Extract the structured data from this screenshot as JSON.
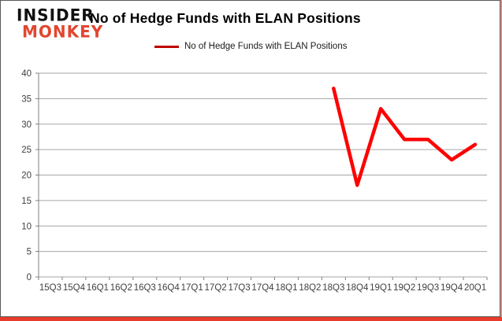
{
  "logo": {
    "line1": "INSIDER",
    "line2": "MONKEY"
  },
  "header": {
    "title": "No of Hedge Funds with ELAN Positions"
  },
  "legend": {
    "label": "No of Hedge Funds with ELAN Positions"
  },
  "colors": {
    "series_line": "#ff0000",
    "legend_swatch": "#c00000",
    "logo_monkey": "#e2462f",
    "logo_insider": "#111111",
    "gridline": "#a6a6a6",
    "axis": "#808080",
    "axis_text": "#404040",
    "bottom_border": "#e93b2b",
    "right_border": "#d58f85"
  },
  "chart_data": {
    "type": "line",
    "title": "No of Hedge Funds with ELAN Positions",
    "categories": [
      "15Q3",
      "15Q4",
      "16Q1",
      "16Q2",
      "16Q3",
      "16Q4",
      "17Q1",
      "17Q2",
      "17Q3",
      "17Q4",
      "18Q1",
      "18Q2",
      "18Q3",
      "18Q4",
      "19Q1",
      "19Q2",
      "19Q3",
      "19Q4",
      "20Q1"
    ],
    "series": [
      {
        "name": "No of Hedge Funds with ELAN Positions",
        "color": "#ff0000",
        "values": [
          null,
          null,
          null,
          null,
          null,
          null,
          null,
          null,
          null,
          null,
          null,
          null,
          37,
          18,
          33,
          27,
          27,
          23,
          26
        ]
      }
    ],
    "ylim": [
      0,
      40
    ],
    "yticks": [
      0,
      5,
      10,
      15,
      20,
      25,
      30,
      35,
      40
    ],
    "grid": "horizontal",
    "legend_position": "top-center"
  }
}
